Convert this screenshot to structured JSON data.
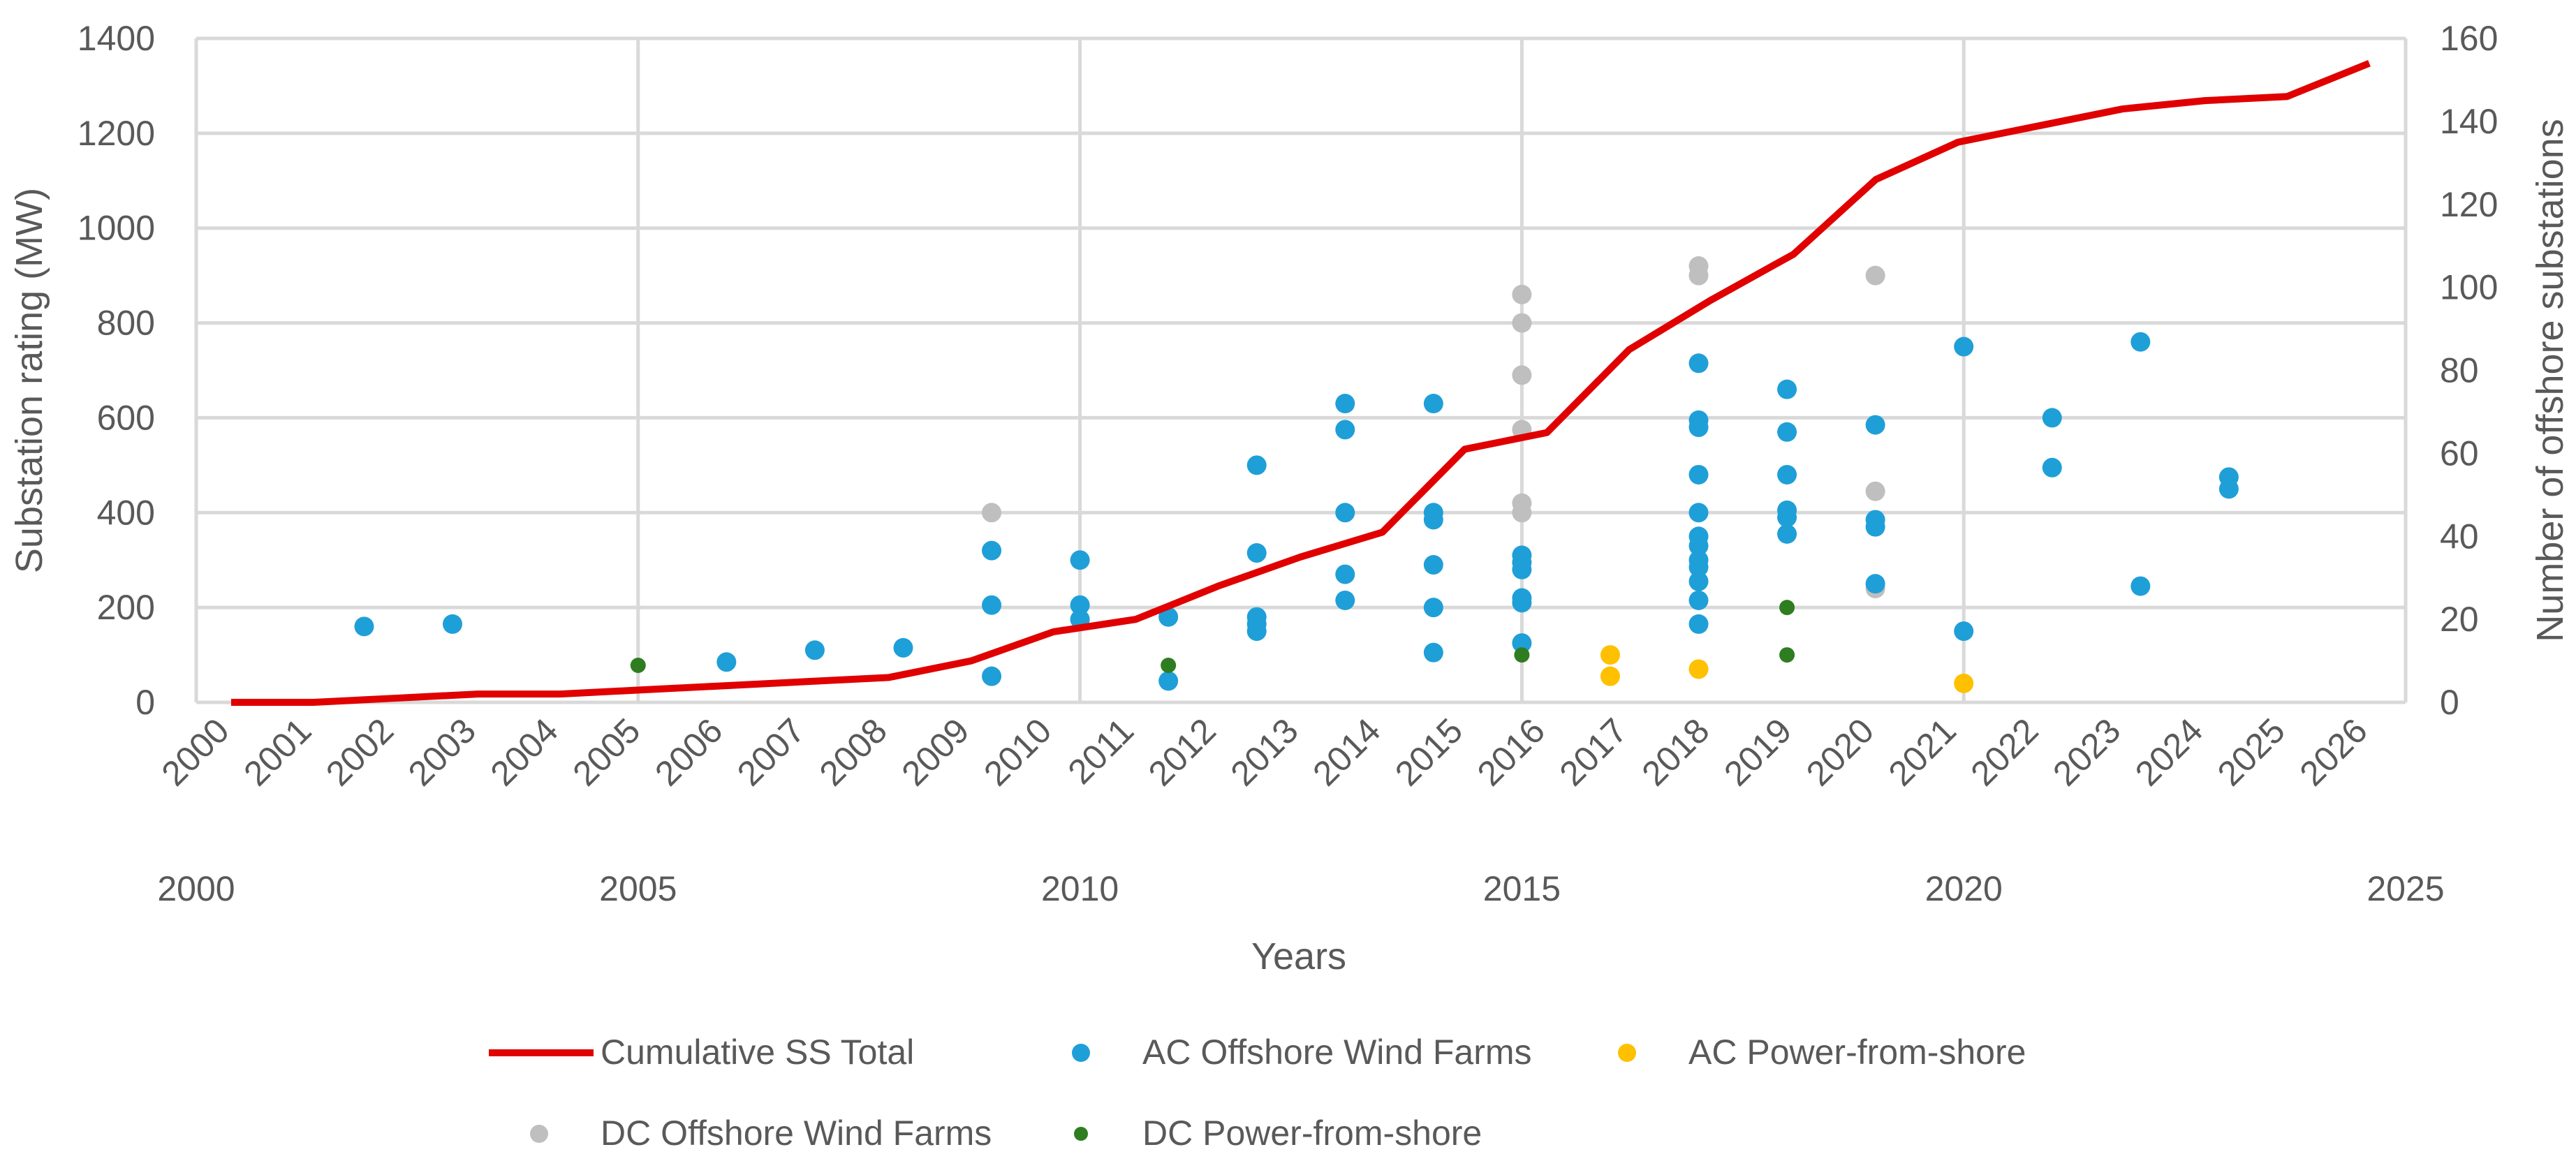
{
  "chart_data": {
    "type": "scatter",
    "title": "",
    "axes": {
      "y_left": {
        "label": "Substation rating (MW)",
        "ylim": [
          0,
          1400
        ],
        "ticks": [
          0,
          200,
          400,
          600,
          800,
          1000,
          1200,
          1400
        ]
      },
      "y_right": {
        "label": "Number of offshore substations",
        "ylim": [
          0,
          160
        ],
        "ticks": [
          0,
          20,
          40,
          60,
          80,
          100,
          120,
          140,
          160
        ]
      },
      "x_bottom": {
        "label": "Years",
        "xlim": [
          2000,
          2025
        ],
        "ticks": [
          2000,
          2005,
          2010,
          2015,
          2020,
          2025
        ]
      },
      "x_top_category": {
        "categories": [
          "2000",
          "2001",
          "2002",
          "2003",
          "2004",
          "2005",
          "2006",
          "2007",
          "2008",
          "2009",
          "2010",
          "2011",
          "2012",
          "2013",
          "2014",
          "2015",
          "2016",
          "2017",
          "2018",
          "2019",
          "2020",
          "2021",
          "2022",
          "2023",
          "2024",
          "2025",
          "2026"
        ]
      },
      "grid": true
    },
    "series": [
      {
        "name": "Cumulative SS Total",
        "kind": "line",
        "axis": "right",
        "color": "#e00000",
        "categories": [
          "2000",
          "2001",
          "2002",
          "2003",
          "2004",
          "2005",
          "2006",
          "2007",
          "2008",
          "2009",
          "2010",
          "2011",
          "2012",
          "2013",
          "2014",
          "2015",
          "2016",
          "2017",
          "2018",
          "2019",
          "2020",
          "2021",
          "2022",
          "2023",
          "2024",
          "2025",
          "2026"
        ],
        "values": [
          0,
          0,
          1,
          2,
          2,
          3,
          4,
          5,
          6,
          10,
          17,
          20,
          28,
          35,
          41,
          61,
          65,
          85,
          97,
          108,
          126,
          135,
          139,
          143,
          145,
          146,
          154
        ]
      },
      {
        "name": "AC Offshore Wind Farms",
        "kind": "scatter",
        "axis": "left",
        "color": "#1f9fd8",
        "points": [
          {
            "x": 2001.9,
            "y": 160
          },
          {
            "x": 2002.9,
            "y": 165
          },
          {
            "x": 2006.0,
            "y": 85
          },
          {
            "x": 2007.0,
            "y": 110
          },
          {
            "x": 2008.0,
            "y": 115
          },
          {
            "x": 2009.0,
            "y": 320
          },
          {
            "x": 2009.0,
            "y": 205
          },
          {
            "x": 2009.0,
            "y": 55
          },
          {
            "x": 2010.0,
            "y": 300
          },
          {
            "x": 2010.0,
            "y": 205
          },
          {
            "x": 2010.0,
            "y": 175
          },
          {
            "x": 2011.0,
            "y": 180
          },
          {
            "x": 2011.0,
            "y": 45
          },
          {
            "x": 2012.0,
            "y": 500
          },
          {
            "x": 2012.0,
            "y": 315
          },
          {
            "x": 2012.0,
            "y": 180
          },
          {
            "x": 2012.0,
            "y": 165
          },
          {
            "x": 2012.0,
            "y": 150
          },
          {
            "x": 2013.0,
            "y": 630
          },
          {
            "x": 2013.0,
            "y": 575
          },
          {
            "x": 2013.0,
            "y": 400
          },
          {
            "x": 2013.0,
            "y": 270
          },
          {
            "x": 2013.0,
            "y": 215
          },
          {
            "x": 2014.0,
            "y": 630
          },
          {
            "x": 2014.0,
            "y": 400
          },
          {
            "x": 2014.0,
            "y": 385
          },
          {
            "x": 2014.0,
            "y": 290
          },
          {
            "x": 2014.0,
            "y": 200
          },
          {
            "x": 2014.0,
            "y": 105
          },
          {
            "x": 2015.0,
            "y": 310
          },
          {
            "x": 2015.0,
            "y": 295
          },
          {
            "x": 2015.0,
            "y": 280
          },
          {
            "x": 2015.0,
            "y": 220
          },
          {
            "x": 2015.0,
            "y": 210
          },
          {
            "x": 2015.0,
            "y": 125
          },
          {
            "x": 2017.0,
            "y": 715
          },
          {
            "x": 2017.0,
            "y": 595
          },
          {
            "x": 2017.0,
            "y": 580
          },
          {
            "x": 2017.0,
            "y": 480
          },
          {
            "x": 2017.0,
            "y": 400
          },
          {
            "x": 2017.0,
            "y": 350
          },
          {
            "x": 2017.0,
            "y": 330
          },
          {
            "x": 2017.0,
            "y": 300
          },
          {
            "x": 2017.0,
            "y": 285
          },
          {
            "x": 2017.0,
            "y": 255
          },
          {
            "x": 2017.0,
            "y": 215
          },
          {
            "x": 2017.0,
            "y": 165
          },
          {
            "x": 2018.0,
            "y": 660
          },
          {
            "x": 2018.0,
            "y": 570
          },
          {
            "x": 2018.0,
            "y": 480
          },
          {
            "x": 2018.0,
            "y": 405
          },
          {
            "x": 2018.0,
            "y": 390
          },
          {
            "x": 2018.0,
            "y": 355
          },
          {
            "x": 2019.0,
            "y": 585
          },
          {
            "x": 2019.0,
            "y": 385
          },
          {
            "x": 2019.0,
            "y": 370
          },
          {
            "x": 2019.0,
            "y": 250
          },
          {
            "x": 2020.0,
            "y": 750
          },
          {
            "x": 2020.0,
            "y": 150
          },
          {
            "x": 2021.0,
            "y": 600
          },
          {
            "x": 2021.0,
            "y": 495
          },
          {
            "x": 2022.0,
            "y": 760
          },
          {
            "x": 2022.0,
            "y": 245
          },
          {
            "x": 2023.0,
            "y": 475
          },
          {
            "x": 2023.0,
            "y": 450
          }
        ]
      },
      {
        "name": "AC Power-from-shore",
        "kind": "scatter",
        "axis": "left",
        "color": "#ffc000",
        "points": [
          {
            "x": 2016.0,
            "y": 100
          },
          {
            "x": 2016.0,
            "y": 55
          },
          {
            "x": 2017.0,
            "y": 70
          },
          {
            "x": 2020.0,
            "y": 40
          }
        ]
      },
      {
        "name": "DC Offshore Wind Farms",
        "kind": "scatter",
        "axis": "left",
        "color": "#bfbfbf",
        "points": [
          {
            "x": 2009.0,
            "y": 400
          },
          {
            "x": 2015.0,
            "y": 860
          },
          {
            "x": 2015.0,
            "y": 800
          },
          {
            "x": 2015.0,
            "y": 690
          },
          {
            "x": 2015.0,
            "y": 575
          },
          {
            "x": 2015.0,
            "y": 420
          },
          {
            "x": 2015.0,
            "y": 400
          },
          {
            "x": 2017.0,
            "y": 920
          },
          {
            "x": 2017.0,
            "y": 900
          },
          {
            "x": 2019.0,
            "y": 900
          },
          {
            "x": 2019.0,
            "y": 445
          },
          {
            "x": 2019.0,
            "y": 240
          }
        ]
      },
      {
        "name": "DC Power-from-shore",
        "kind": "scatter",
        "axis": "left",
        "color": "#2e7d20",
        "points": [
          {
            "x": 2005.0,
            "y": 78
          },
          {
            "x": 2011.0,
            "y": 78
          },
          {
            "x": 2015.0,
            "y": 100
          },
          {
            "x": 2018.0,
            "y": 200
          },
          {
            "x": 2018.0,
            "y": 100
          }
        ]
      }
    ],
    "legend": {
      "placement": "bottom",
      "items": [
        "Cumulative SS Total",
        "AC Offshore Wind Farms",
        "AC Power-from-shore",
        "DC Offshore Wind Farms",
        "DC Power-from-shore"
      ]
    }
  }
}
